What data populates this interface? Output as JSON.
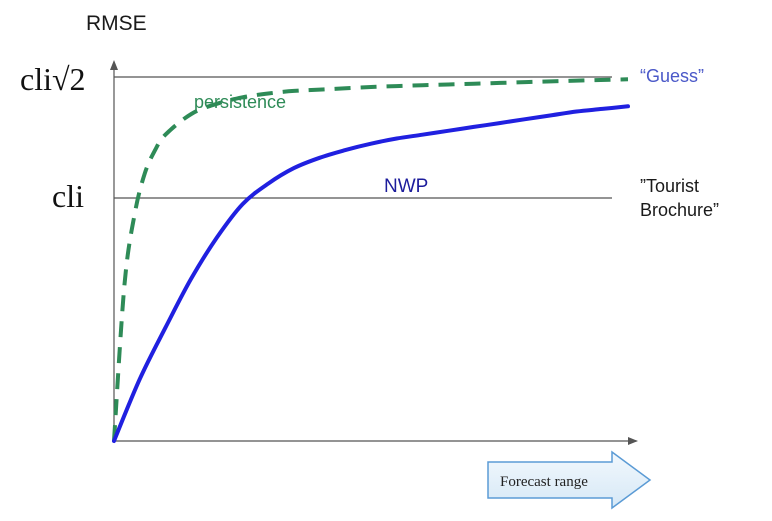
{
  "chart_data": {
    "type": "line",
    "ylabel": "RMSE",
    "xlabel": "Forecast range",
    "xlim": [
      0,
      10
    ],
    "ylim": [
      0,
      1.414
    ],
    "reference_lines": [
      {
        "value": 1.414,
        "label_axis": "cli√2",
        "label_right": "“Guess”",
        "label_color": "#4a58c8"
      },
      {
        "value": 1.0,
        "label_axis": "cli",
        "label_right_lines": [
          "”Tourist",
          "Brochure”"
        ],
        "label_color": "#1a1a1a"
      }
    ],
    "series": [
      {
        "name": "persistence",
        "color": "#2e8b57",
        "style": "dashed",
        "x": [
          0,
          0.2,
          0.4,
          0.6,
          0.8,
          1.0,
          1.5,
          2.0,
          2.5,
          3.0,
          3.5,
          4.0,
          5.0,
          6.0,
          7.0,
          8.0,
          9.0,
          10.0
        ],
        "y": [
          0,
          0.6,
          0.88,
          1.04,
          1.13,
          1.19,
          1.27,
          1.31,
          1.335,
          1.35,
          1.36,
          1.365,
          1.375,
          1.382,
          1.388,
          1.394,
          1.4,
          1.405
        ]
      },
      {
        "name": "NWP",
        "color": "#2020e0",
        "style": "solid",
        "x": [
          0,
          0.5,
          1.0,
          1.5,
          2.0,
          2.5,
          3.0,
          3.5,
          4.0,
          4.5,
          5.0,
          5.5,
          6.0,
          6.5,
          7.0,
          7.5,
          8.0,
          8.5,
          9.0,
          9.5,
          10.0
        ],
        "y": [
          0,
          0.24,
          0.44,
          0.63,
          0.79,
          0.92,
          1.0,
          1.06,
          1.1,
          1.13,
          1.155,
          1.175,
          1.19,
          1.205,
          1.22,
          1.235,
          1.25,
          1.265,
          1.28,
          1.29,
          1.3
        ]
      }
    ]
  }
}
